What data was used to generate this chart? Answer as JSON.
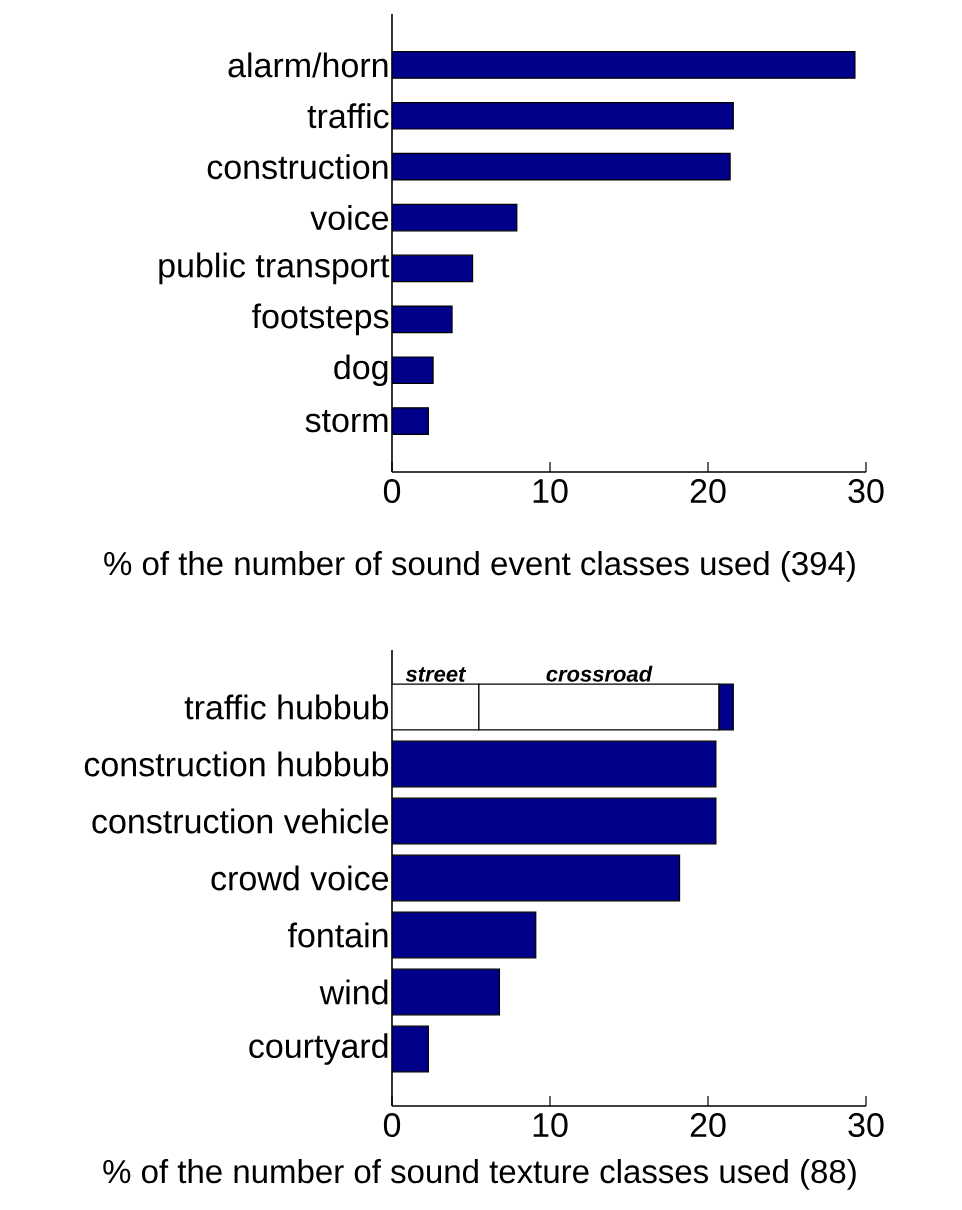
{
  "chart_data": [
    {
      "type": "bar",
      "orientation": "horizontal",
      "categories": [
        "alarm/horn",
        "traffic",
        "construction",
        "voice",
        "public transport",
        "footsteps",
        "dog",
        "storm"
      ],
      "values": [
        29.3,
        21.6,
        21.4,
        7.9,
        5.1,
        3.8,
        2.6,
        2.3
      ],
      "color": "#00008b",
      "xlim": [
        0,
        30
      ],
      "xticks": [
        0,
        10,
        20,
        30
      ],
      "xlabel": "% of the number of sound event classes used (394)"
    },
    {
      "type": "bar",
      "orientation": "horizontal",
      "stacked": true,
      "categories": [
        "traffic hubbub",
        "construction hubbub",
        "construction vehicle",
        "crowd voice",
        "fontain",
        "wind",
        "courtyard"
      ],
      "series": [
        {
          "name": "street",
          "color": "#ffffff",
          "values": [
            5.5,
            null,
            null,
            null,
            null,
            null,
            null
          ]
        },
        {
          "name": "crossroad",
          "color": "#ffffff",
          "values": [
            15.2,
            null,
            null,
            null,
            null,
            null,
            null
          ]
        },
        {
          "color": "#00008b",
          "values": [
            0.9,
            20.5,
            20.5,
            18.2,
            9.1,
            6.8,
            2.3
          ]
        }
      ],
      "xlim": [
        0,
        30
      ],
      "xticks": [
        0,
        10,
        20,
        30
      ],
      "xlabel": "% of the number of sound texture classes used (88)"
    }
  ]
}
